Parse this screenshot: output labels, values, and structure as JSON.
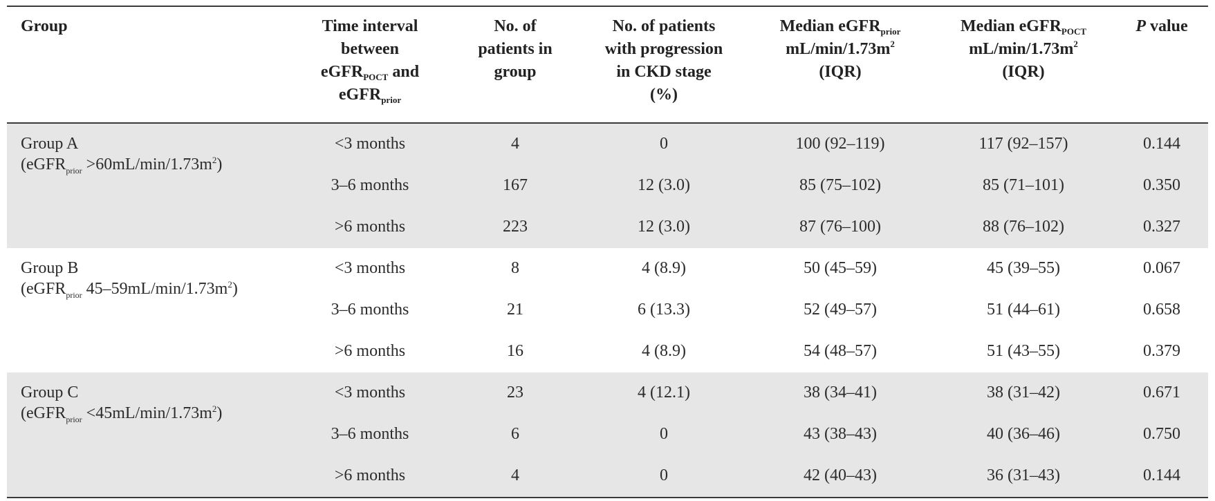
{
  "header": {
    "group": "Group",
    "time_interval": [
      "Time interval",
      "between",
      "eGFR",
      "POCT",
      " and",
      "eGFR",
      "prior"
    ],
    "num_patients": [
      "No. of",
      "patients in",
      "group"
    ],
    "num_progression": [
      "No. of patients",
      "with progression",
      "in CKD stage",
      "(%)"
    ],
    "median_prior": [
      "Median eGFR",
      "prior",
      "mL/min/1.73m",
      "2",
      "(IQR)"
    ],
    "median_poct": [
      "Median eGFR",
      "POCT",
      "mL/min/1.73m",
      "2",
      "(IQR)"
    ],
    "p_value": [
      "P",
      " value"
    ]
  },
  "groups": [
    {
      "name": "Group A",
      "desc_open": "(eGFR",
      "desc_sub": "prior",
      "desc_mid": " >60mL/min/1.73m",
      "desc_sup": "2",
      "desc_close": ")",
      "rows": [
        [
          "<3 months",
          "4",
          "0",
          "100 (92–119)",
          "117 (92–157)",
          "0.144"
        ],
        [
          "3–6 months",
          "167",
          "12 (3.0)",
          "85 (75–102)",
          "85 (71–101)",
          "0.350"
        ],
        [
          ">6 months",
          "223",
          "12 (3.0)",
          "87 (76–100)",
          "88 (76–102)",
          "0.327"
        ]
      ]
    },
    {
      "name": "Group B",
      "desc_open": "(eGFR",
      "desc_sub": "prior",
      "desc_mid": " 45–59mL/min/1.73m",
      "desc_sup": "2",
      "desc_close": ")",
      "rows": [
        [
          "<3 months",
          "8",
          "4 (8.9)",
          "50 (45–59)",
          "45 (39–55)",
          "0.067"
        ],
        [
          "3–6 months",
          "21",
          "6 (13.3)",
          "52 (49–57)",
          "51 (44–61)",
          "0.658"
        ],
        [
          ">6 months",
          "16",
          "4 (8.9)",
          "54 (48–57)",
          "51 (43–55)",
          "0.379"
        ]
      ]
    },
    {
      "name": "Group C",
      "desc_open": "(eGFR",
      "desc_sub": "prior",
      "desc_mid": " <45mL/min/1.73m",
      "desc_sup": "2",
      "desc_close": ")",
      "rows": [
        [
          "<3 months",
          "23",
          "4 (12.1)",
          "38 (34–41)",
          "38 (31–42)",
          "0.671"
        ],
        [
          "3–6 months",
          "6",
          "0",
          "43 (38–43)",
          "40 (36–46)",
          "0.750"
        ],
        [
          ">6 months",
          "4",
          "0",
          "42 (40–43)",
          "36 (31–43)",
          "0.144"
        ]
      ]
    }
  ],
  "colors": {
    "shade": "#e6e6e6",
    "rule": "#3a3a3a",
    "text": "#2b2b2b"
  }
}
